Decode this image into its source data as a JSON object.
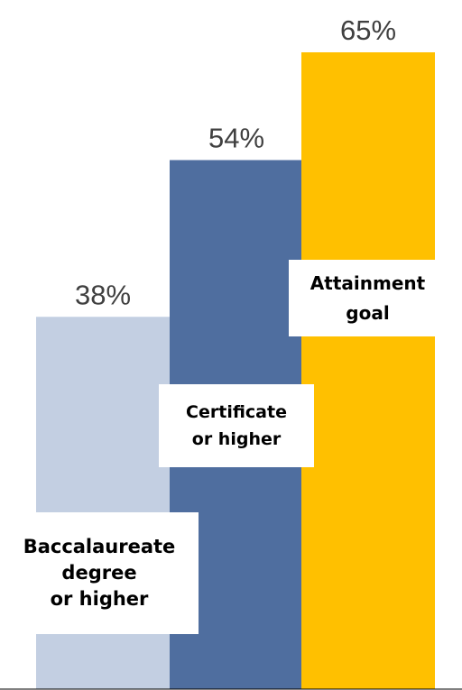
{
  "chart_data": {
    "type": "bar",
    "categories": [
      "Baccalaureate\ndegree\nor higher",
      "Certificate\nor higher",
      "Attainment\ngoal"
    ],
    "values": [
      38,
      54,
      65
    ],
    "value_labels": [
      "38%",
      "54%",
      "65%"
    ],
    "colors": [
      "#c3cfe2",
      "#4f6e9f",
      "#ffc000"
    ],
    "ylim": [
      0,
      70
    ],
    "grid": false,
    "title": "",
    "xlabel": "",
    "ylabel": ""
  }
}
